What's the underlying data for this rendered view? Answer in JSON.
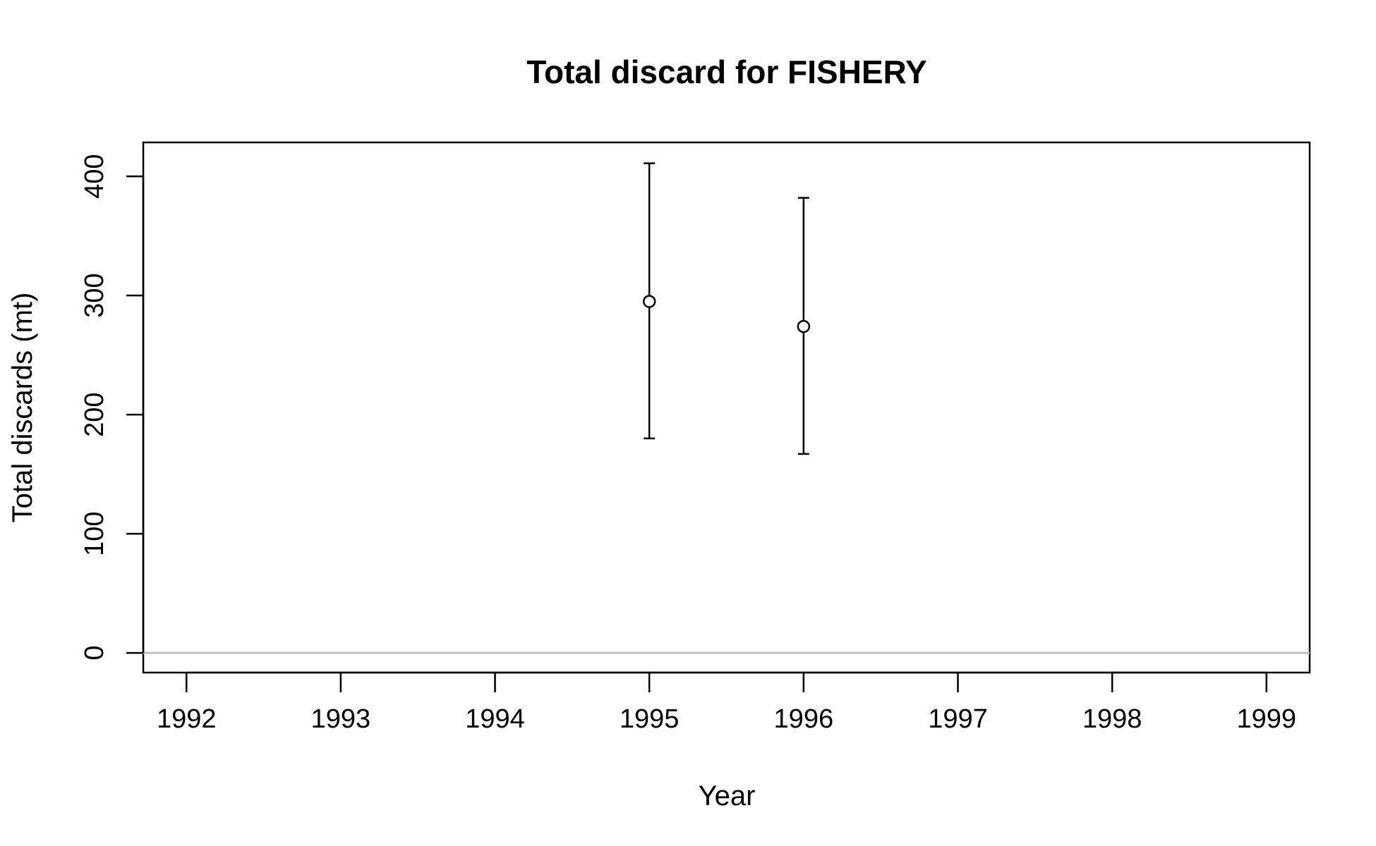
{
  "chart_data": {
    "type": "scatter",
    "title": "Total discard for FISHERY",
    "xlabel": "Year",
    "ylabel": "Total discards (mt)",
    "xlim": [
      1991.72,
      1999.28
    ],
    "ylim": [
      -16.5,
      428.5
    ],
    "xticks": [
      1992,
      1993,
      1994,
      1995,
      1996,
      1997,
      1998,
      1999
    ],
    "yticks": [
      0,
      100,
      200,
      300,
      400
    ],
    "reference_line": {
      "y": 0,
      "color": "#bebebe"
    },
    "grid": false,
    "series": [
      {
        "points": [
          {
            "x": 1995,
            "y": 295,
            "lower": 180,
            "upper": 411
          },
          {
            "x": 1996,
            "y": 274,
            "lower": 167,
            "upper": 382
          }
        ]
      }
    ]
  }
}
